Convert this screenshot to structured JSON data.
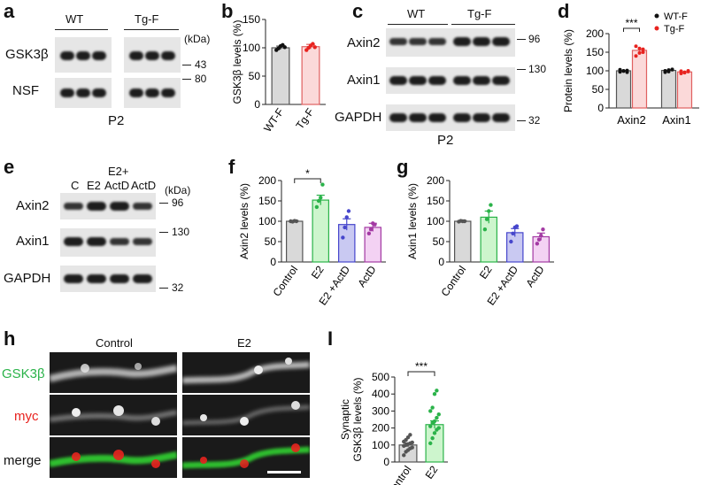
{
  "panel_labels": {
    "a": "a",
    "b": "b",
    "c": "c",
    "d": "d",
    "e": "e",
    "f": "f",
    "g": "g",
    "h": "h",
    "i": "I"
  },
  "panel_a": {
    "group_left": "WT",
    "group_right": "Tg-F",
    "rows": [
      "GSK3β",
      "NSF"
    ],
    "unit": "(kDa)",
    "markers": [
      "43",
      "80"
    ],
    "fraction": "P2"
  },
  "panel_c": {
    "group_left": "WT",
    "group_right": "Tg-F",
    "rows": [
      "Axin2",
      "Axin1",
      "GAPDH"
    ],
    "markers": [
      "96",
      "130",
      "32"
    ],
    "fraction": "P2"
  },
  "panel_e": {
    "lanes": [
      "C",
      "E2",
      "E2+\nActD",
      "ActD"
    ],
    "lane_top": "E2+",
    "lane_bottom": "ActD",
    "unit": "(kDa)",
    "rows": [
      "Axin2",
      "Axin1",
      "GAPDH"
    ],
    "markers": [
      "96",
      "130",
      "32"
    ]
  },
  "panel_h": {
    "columns": [
      "Control",
      "E2"
    ],
    "rows": [
      "GSK3β",
      "myc",
      "merge"
    ],
    "row_colors": [
      "#2bb34a",
      "#e8231f",
      "#111111"
    ]
  },
  "chart_data": [
    {
      "panel": "b",
      "type": "bar",
      "ylabel": "GSK3β levels (%)",
      "ylim": [
        0,
        150
      ],
      "yticks": [
        0,
        50,
        100,
        150
      ],
      "categories": [
        "WT-F",
        "Tg-F"
      ],
      "values": [
        100,
        102
      ],
      "sem": [
        3,
        4
      ],
      "points": [
        [
          96,
          99,
          103,
          105,
          101
        ],
        [
          96,
          100,
          104,
          107,
          101
        ]
      ],
      "fill": [
        "#d9d9d9",
        "#fbd9d9"
      ],
      "edge": [
        "#555555",
        "#e06060"
      ],
      "point_color": [
        "#111111",
        "#e8231f"
      ]
    },
    {
      "panel": "d",
      "type": "bar",
      "ylabel": "Protein levels (%)",
      "ylim": [
        0,
        200
      ],
      "yticks": [
        0,
        50,
        100,
        150,
        200
      ],
      "categories": [
        "Axin2",
        "Axin1"
      ],
      "series": [
        {
          "name": "WT-F",
          "values": [
            100,
            101
          ],
          "color": "#111111"
        },
        {
          "name": "Tg-F",
          "values": [
            155,
            97
          ],
          "color": "#e8231f"
        }
      ],
      "sem": [
        [
          3,
          4
        ],
        [
          8,
          3
        ]
      ],
      "points": [
        [
          [
            97,
            99,
            101,
            103,
            100,
            96
          ],
          [
            96,
            102,
            104,
            100,
            98,
            103
          ]
        ],
        [
          [
            140,
            148,
            158,
            166,
            160,
            150
          ],
          [
            93,
            96,
            100,
            99,
            95,
            98
          ]
        ]
      ],
      "significance": {
        "label": "***",
        "between": "Axin2"
      },
      "legend": "top-right"
    },
    {
      "panel": "f",
      "type": "bar",
      "ylabel": "Axin2 levels (%)",
      "ylim": [
        0,
        200
      ],
      "yticks": [
        0,
        50,
        100,
        150,
        200
      ],
      "categories": [
        "Control",
        "E2",
        "E2 +ActD",
        "ActD"
      ],
      "values": [
        100,
        152,
        92,
        85
      ],
      "sem": [
        2,
        12,
        14,
        10
      ],
      "points": [
        [
          100,
          99,
          101,
          100
        ],
        [
          135,
          150,
          158,
          190
        ],
        [
          60,
          85,
          110,
          125
        ],
        [
          70,
          80,
          95,
          92
        ]
      ],
      "fill": [
        "#d9d9d9",
        "#cdf5cd",
        "#c9c9f2",
        "#f3d2f3"
      ],
      "edge": [
        "#555555",
        "#2bb34a",
        "#4646cc",
        "#a33aa3"
      ],
      "significance": {
        "label": "*",
        "between": [
          "Control",
          "E2"
        ]
      }
    },
    {
      "panel": "g",
      "type": "bar",
      "ylabel": "Axin1 levels (%)",
      "ylim": [
        0,
        200
      ],
      "yticks": [
        0,
        50,
        100,
        150,
        200
      ],
      "categories": [
        "Control",
        "E2",
        "E2 +ActD",
        "ActD"
      ],
      "values": [
        100,
        110,
        72,
        62
      ],
      "sem": [
        2,
        15,
        10,
        9
      ],
      "points": [
        [
          99,
          101,
          100,
          100
        ],
        [
          80,
          105,
          125,
          140
        ],
        [
          50,
          70,
          85,
          88
        ],
        [
          45,
          55,
          65,
          80
        ]
      ],
      "fill": [
        "#d9d9d9",
        "#cdf5cd",
        "#c9c9f2",
        "#f3d2f3"
      ],
      "edge": [
        "#555555",
        "#2bb34a",
        "#4646cc",
        "#a33aa3"
      ]
    },
    {
      "panel": "I",
      "type": "bar",
      "ylabel": "Synaptic GSK3β levels (%)",
      "ylabel_lines": [
        "Synaptic",
        "GSK3β levels (%)"
      ],
      "ylim": [
        0,
        500
      ],
      "yticks": [
        0,
        100,
        200,
        300,
        400,
        500
      ],
      "categories": [
        "Control",
        "E2"
      ],
      "values": [
        100,
        220
      ],
      "sem": [
        12,
        22
      ],
      "points": [
        [
          40,
          60,
          70,
          80,
          85,
          95,
          100,
          105,
          110,
          115,
          120,
          130,
          145,
          160
        ],
        [
          110,
          140,
          170,
          190,
          200,
          210,
          230,
          240,
          260,
          280,
          300,
          320,
          400,
          420
        ]
      ],
      "fill": [
        "#d9d9d9",
        "#cdf5cd"
      ],
      "edge": [
        "#555555",
        "#2bb34a"
      ],
      "significance": {
        "label": "***",
        "between": [
          "Control",
          "E2"
        ]
      }
    }
  ]
}
